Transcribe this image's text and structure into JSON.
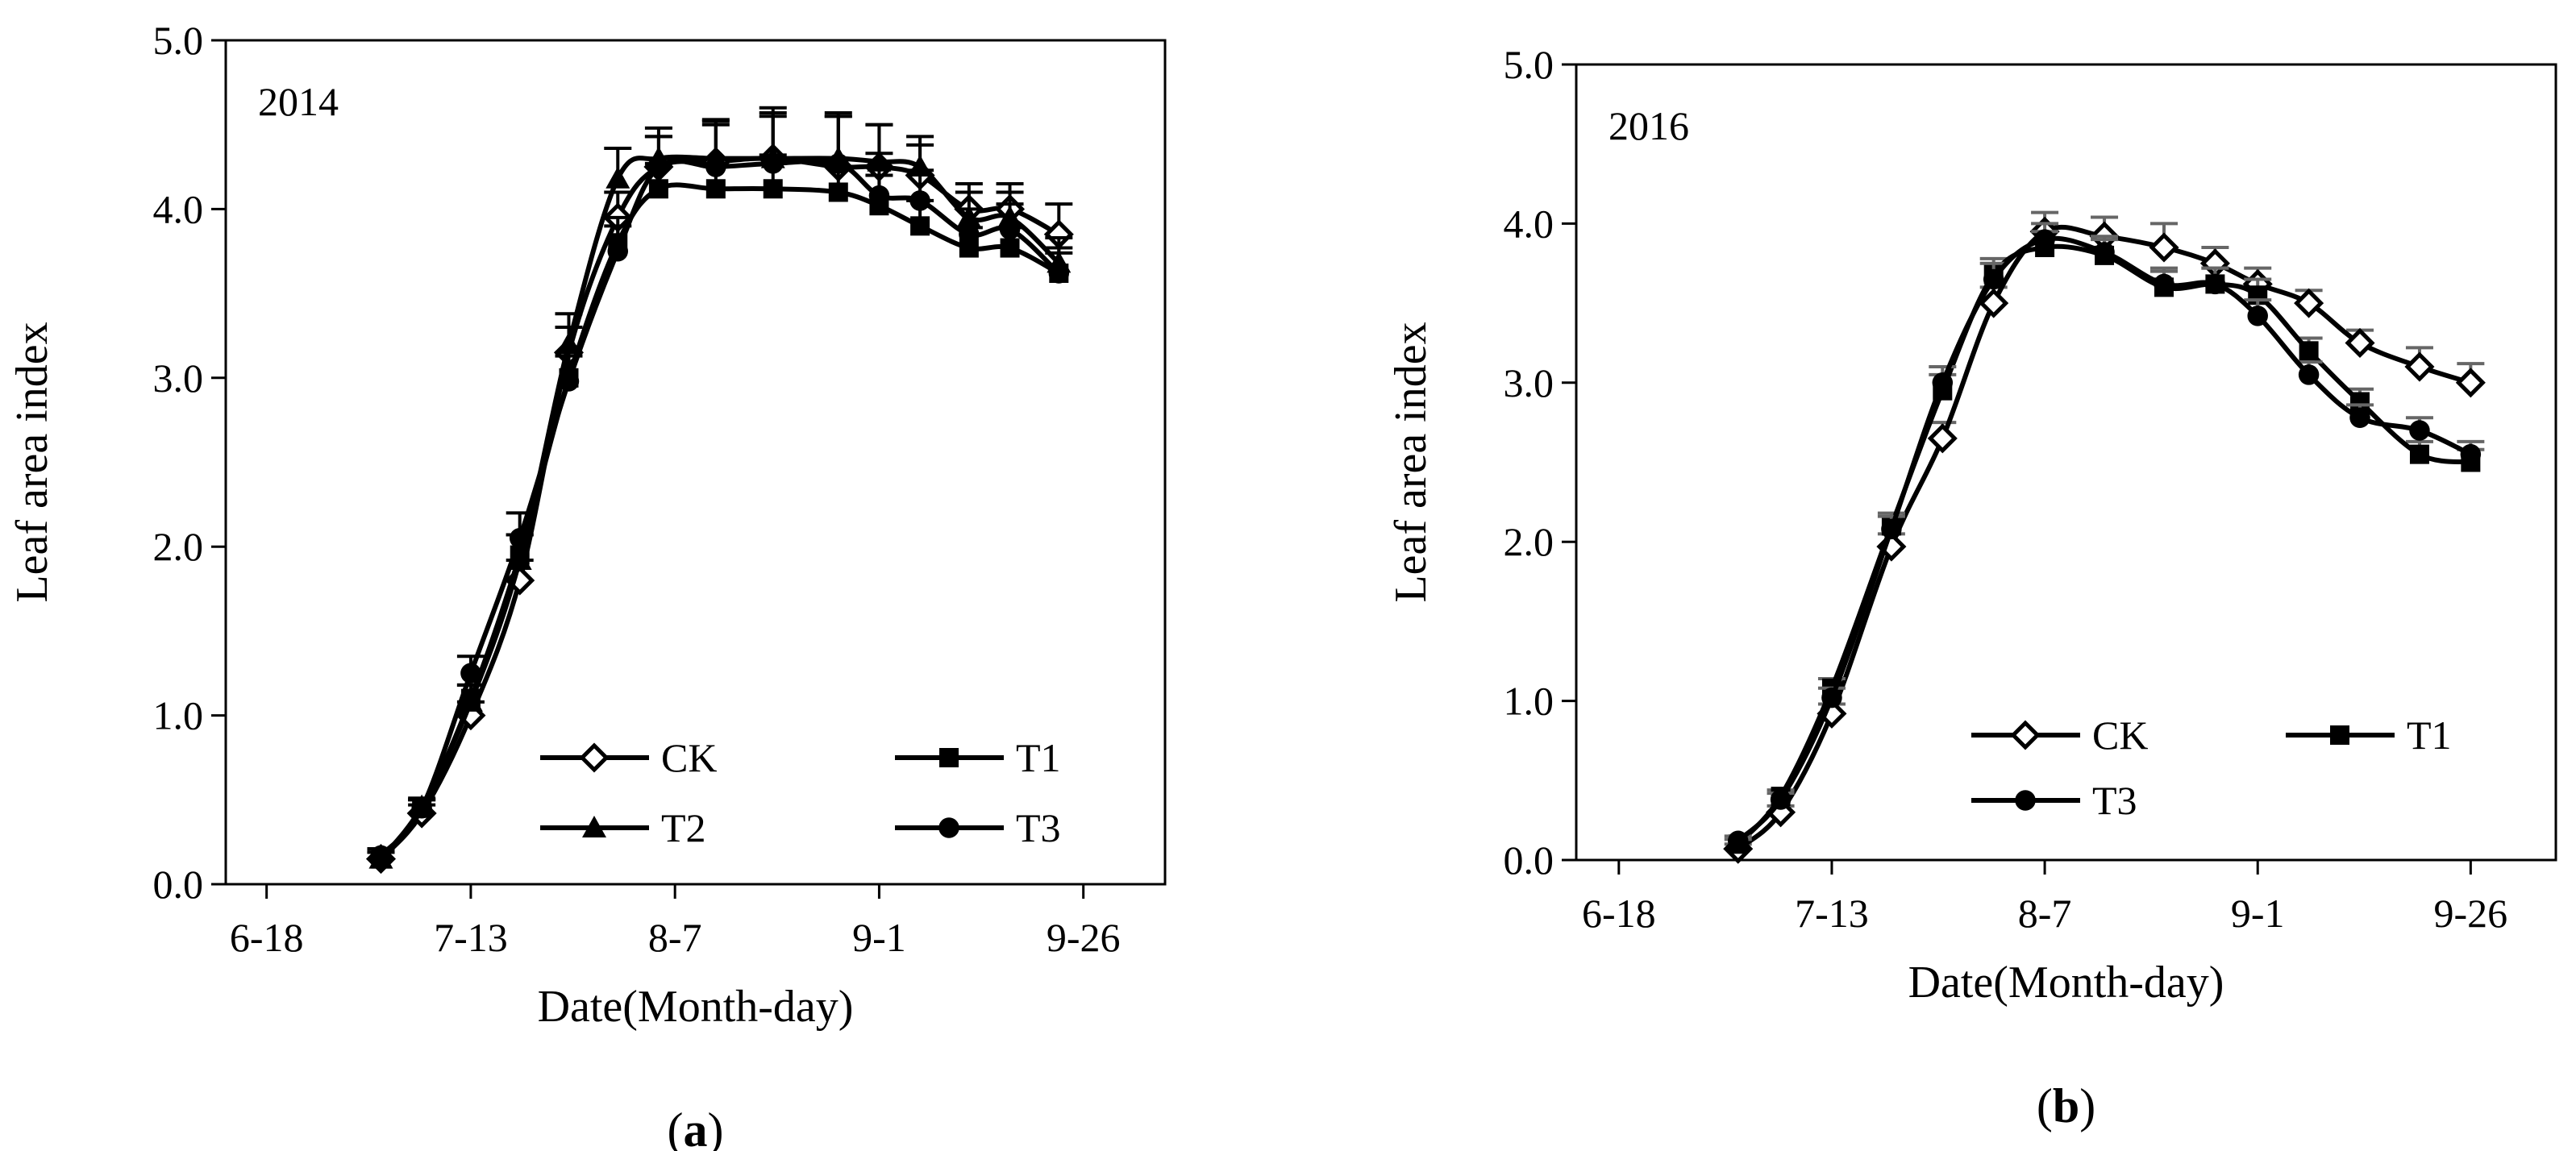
{
  "figure": {
    "panels": [
      {
        "label_open": "(",
        "label_letter": "a",
        "label_close": ")"
      },
      {
        "label_open": "(",
        "label_letter": "b",
        "label_close": ")"
      }
    ]
  },
  "chart_data": [
    {
      "type": "line",
      "title": "2014",
      "xlabel": "Date(Month-day)",
      "ylabel": "Leaf area index",
      "xlim": [
        -5,
        110
      ],
      "ylim": [
        0,
        5
      ],
      "xticks": [
        {
          "value": 0,
          "label": "6-18"
        },
        {
          "value": 25,
          "label": "7-13"
        },
        {
          "value": 50,
          "label": "8-7"
        },
        {
          "value": 75,
          "label": "9-1"
        },
        {
          "value": 100,
          "label": "9-26"
        }
      ],
      "yticks": [
        {
          "value": 0,
          "label": "0.0"
        },
        {
          "value": 1,
          "label": "1.0"
        },
        {
          "value": 2,
          "label": "2.0"
        },
        {
          "value": 3,
          "label": "3.0"
        },
        {
          "value": 4,
          "label": "4.0"
        },
        {
          "value": 5,
          "label": "5.0"
        }
      ],
      "x": [
        14,
        19,
        25,
        31,
        37,
        43,
        48,
        55,
        62,
        70,
        75,
        80,
        86,
        91,
        97
      ],
      "legend_columns": 2,
      "series": [
        {
          "name": "CK",
          "marker": "diamond-open",
          "error_color": "#000000",
          "values": [
            0.15,
            0.42,
            1.0,
            1.8,
            3.15,
            3.95,
            4.25,
            4.28,
            4.3,
            4.25,
            4.25,
            4.2,
            4.0,
            4.0,
            3.85
          ],
          "errors": [
            0.04,
            0.05,
            0.08,
            0.12,
            0.15,
            0.15,
            0.18,
            0.25,
            0.3,
            0.3,
            0.25,
            0.18,
            0.15,
            0.15,
            0.18
          ]
        },
        {
          "name": "T1",
          "marker": "square",
          "error_color": "#000000",
          "values": [
            0.15,
            0.45,
            1.1,
            1.95,
            3.0,
            3.8,
            4.12,
            4.12,
            4.12,
            4.1,
            4.02,
            3.9,
            3.77,
            3.77,
            3.62
          ],
          "errors": [
            0.04,
            0.05,
            0.08,
            0.12,
            0.15,
            0.15,
            0.15,
            0.18,
            0.2,
            0.2,
            0.18,
            0.15,
            0.12,
            0.12,
            0.12
          ]
        },
        {
          "name": "T2",
          "marker": "triangle",
          "error_color": "#000000",
          "values": [
            0.15,
            0.46,
            1.08,
            1.92,
            3.2,
            4.18,
            4.3,
            4.3,
            4.3,
            4.3,
            4.28,
            4.25,
            3.95,
            3.95,
            3.68
          ],
          "errors": [
            0.04,
            0.05,
            0.1,
            0.15,
            0.18,
            0.18,
            0.18,
            0.22,
            0.25,
            0.25,
            0.22,
            0.18,
            0.15,
            0.15,
            0.15
          ]
        },
        {
          "name": "T3",
          "marker": "circle",
          "error_color": "#000000",
          "values": [
            0.17,
            0.45,
            1.25,
            2.05,
            2.98,
            3.75,
            4.25,
            4.25,
            4.27,
            4.27,
            4.08,
            4.05,
            3.85,
            3.88,
            3.62
          ],
          "errors": [
            0.04,
            0.05,
            0.1,
            0.15,
            0.15,
            0.15,
            0.18,
            0.25,
            0.3,
            0.3,
            0.25,
            0.18,
            0.15,
            0.15,
            0.15
          ]
        }
      ]
    },
    {
      "type": "line",
      "title": "2016",
      "xlabel": "Date(Month-day)",
      "ylabel": "Leaf area index",
      "xlim": [
        -5,
        110
      ],
      "ylim": [
        0,
        5
      ],
      "xticks": [
        {
          "value": 0,
          "label": "6-18"
        },
        {
          "value": 25,
          "label": "7-13"
        },
        {
          "value": 50,
          "label": "8-7"
        },
        {
          "value": 75,
          "label": "9-1"
        },
        {
          "value": 100,
          "label": "9-26"
        }
      ],
      "yticks": [
        {
          "value": 0,
          "label": "0.0"
        },
        {
          "value": 1,
          "label": "1.0"
        },
        {
          "value": 2,
          "label": "2.0"
        },
        {
          "value": 3,
          "label": "3.0"
        },
        {
          "value": 4,
          "label": "4.0"
        },
        {
          "value": 5,
          "label": "5.0"
        }
      ],
      "x": [
        14,
        19,
        25,
        32,
        38,
        44,
        50,
        57,
        64,
        70,
        75,
        81,
        87,
        94,
        100
      ],
      "legend_columns": 2,
      "series": [
        {
          "name": "CK",
          "marker": "diamond-open",
          "error_color": "#666666",
          "values": [
            0.07,
            0.3,
            0.92,
            1.97,
            2.65,
            3.5,
            3.95,
            3.92,
            3.85,
            3.75,
            3.62,
            3.5,
            3.25,
            3.1,
            3.0
          ],
          "errors": [
            0.03,
            0.04,
            0.06,
            0.08,
            0.1,
            0.1,
            0.12,
            0.12,
            0.15,
            0.1,
            0.1,
            0.08,
            0.08,
            0.12,
            0.12
          ]
        },
        {
          "name": "T1",
          "marker": "square",
          "error_color": "#666666",
          "values": [
            0.1,
            0.4,
            1.08,
            2.1,
            2.95,
            3.68,
            3.85,
            3.8,
            3.6,
            3.62,
            3.55,
            3.2,
            2.88,
            2.55,
            2.5
          ],
          "errors": [
            0.03,
            0.04,
            0.06,
            0.08,
            0.1,
            0.1,
            0.1,
            0.1,
            0.1,
            0.1,
            0.1,
            0.08,
            0.08,
            0.08,
            0.08
          ]
        },
        {
          "name": "T3",
          "marker": "circle",
          "error_color": "#666666",
          "values": [
            0.12,
            0.38,
            1.02,
            2.08,
            3.0,
            3.65,
            3.9,
            3.82,
            3.62,
            3.62,
            3.42,
            3.05,
            2.78,
            2.7,
            2.55
          ],
          "errors": [
            0.03,
            0.04,
            0.06,
            0.08,
            0.1,
            0.1,
            0.1,
            0.1,
            0.1,
            0.1,
            0.1,
            0.08,
            0.08,
            0.08,
            0.08
          ]
        }
      ]
    }
  ]
}
